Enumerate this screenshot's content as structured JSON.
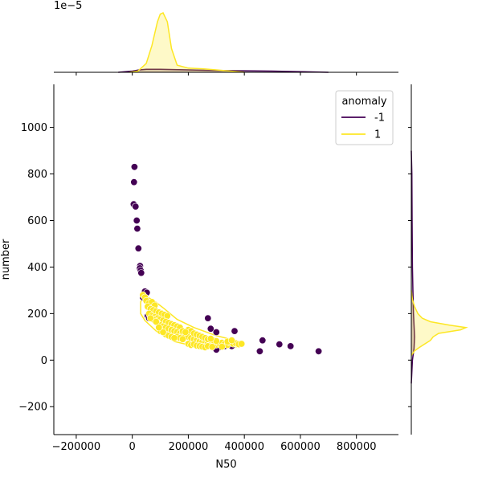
{
  "chart_data": {
    "type": "scatter",
    "xlabel": "N50",
    "ylabel": "number",
    "marginal_x_offset_label": "1e−5",
    "xlim": [
      -280000,
      950000
    ],
    "ylim": [
      -320,
      1185
    ],
    "xticks": [
      -200000,
      0,
      200000,
      400000,
      600000,
      800000
    ],
    "xtick_labels": [
      "−200000",
      "0",
      "200000",
      "400000",
      "600000",
      "800000"
    ],
    "yticks": [
      -200,
      0,
      200,
      400,
      600,
      800,
      1000
    ],
    "ytick_labels": [
      "−200",
      "0",
      "200",
      "400",
      "600",
      "800",
      "1000"
    ],
    "legend": {
      "title": "anomaly",
      "placement": "top-right",
      "entries": [
        {
          "label": "-1",
          "color": "#440154"
        },
        {
          "label": "1",
          "color": "#fde725"
        }
      ]
    },
    "series": [
      {
        "name": "-1",
        "color": "#440154",
        "points": [
          [
            8000,
            830
          ],
          [
            6000,
            765
          ],
          [
            5000,
            670
          ],
          [
            12000,
            660
          ],
          [
            16000,
            600
          ],
          [
            18000,
            565
          ],
          [
            22000,
            480
          ],
          [
            28000,
            405
          ],
          [
            27000,
            395
          ],
          [
            30000,
            385
          ],
          [
            32000,
            375
          ],
          [
            45000,
            295
          ],
          [
            52000,
            290
          ],
          [
            38000,
            270
          ],
          [
            55000,
            190
          ],
          [
            60000,
            180
          ],
          [
            70000,
            200
          ],
          [
            90000,
            160
          ],
          [
            110000,
            140
          ],
          [
            150000,
            120
          ],
          [
            190000,
            100
          ],
          [
            220000,
            110
          ],
          [
            240000,
            90
          ],
          [
            270000,
            180
          ],
          [
            280000,
            135
          ],
          [
            300000,
            120
          ],
          [
            310000,
            55
          ],
          [
            330000,
            60
          ],
          [
            345000,
            75
          ],
          [
            355000,
            60
          ],
          [
            365000,
            125
          ],
          [
            300000,
            45
          ],
          [
            465000,
            85
          ],
          [
            455000,
            38
          ],
          [
            525000,
            68
          ],
          [
            565000,
            60
          ],
          [
            665000,
            38
          ]
        ]
      },
      {
        "name": "1",
        "color": "#fde725",
        "points": [
          [
            38000,
            280
          ],
          [
            45000,
            270
          ],
          [
            50000,
            255
          ],
          [
            60000,
            245
          ],
          [
            70000,
            250
          ],
          [
            80000,
            235
          ],
          [
            55000,
            230
          ],
          [
            65000,
            220
          ],
          [
            75000,
            215
          ],
          [
            85000,
            210
          ],
          [
            95000,
            205
          ],
          [
            105000,
            200
          ],
          [
            115000,
            195
          ],
          [
            125000,
            190
          ],
          [
            60000,
            200
          ],
          [
            70000,
            190
          ],
          [
            80000,
            185
          ],
          [
            90000,
            180
          ],
          [
            100000,
            175
          ],
          [
            110000,
            170
          ],
          [
            120000,
            165
          ],
          [
            130000,
            160
          ],
          [
            140000,
            155
          ],
          [
            150000,
            150
          ],
          [
            160000,
            145
          ],
          [
            170000,
            140
          ],
          [
            90000,
            160
          ],
          [
            100000,
            150
          ],
          [
            110000,
            145
          ],
          [
            120000,
            140
          ],
          [
            130000,
            135
          ],
          [
            140000,
            130
          ],
          [
            150000,
            125
          ],
          [
            160000,
            120
          ],
          [
            170000,
            115
          ],
          [
            180000,
            110
          ],
          [
            190000,
            105
          ],
          [
            200000,
            100
          ],
          [
            210000,
            95
          ],
          [
            220000,
            90
          ],
          [
            230000,
            85
          ],
          [
            240000,
            80
          ],
          [
            250000,
            78
          ],
          [
            260000,
            75
          ],
          [
            270000,
            72
          ],
          [
            280000,
            70
          ],
          [
            290000,
            68
          ],
          [
            300000,
            66
          ],
          [
            310000,
            72
          ],
          [
            320000,
            75
          ],
          [
            330000,
            70
          ],
          [
            340000,
            65
          ],
          [
            350000,
            75
          ],
          [
            360000,
            70
          ],
          [
            370000,
            72
          ],
          [
            380000,
            68
          ],
          [
            390000,
            70
          ],
          [
            200000,
            130
          ],
          [
            210000,
            125
          ],
          [
            220000,
            115
          ],
          [
            180000,
            125
          ],
          [
            190000,
            120
          ],
          [
            160000,
            100
          ],
          [
            170000,
            95
          ],
          [
            180000,
            90
          ],
          [
            230000,
            110
          ],
          [
            240000,
            105
          ],
          [
            250000,
            100
          ],
          [
            260000,
            95
          ],
          [
            270000,
            90
          ],
          [
            200000,
            70
          ],
          [
            210000,
            65
          ],
          [
            220000,
            68
          ],
          [
            230000,
            62
          ],
          [
            240000,
            60
          ],
          [
            250000,
            58
          ],
          [
            260000,
            55
          ],
          [
            120000,
            110
          ],
          [
            130000,
            105
          ],
          [
            140000,
            100
          ],
          [
            150000,
            95
          ],
          [
            100000,
            125
          ],
          [
            110000,
            120
          ],
          [
            75000,
            175
          ],
          [
            85000,
            165
          ],
          [
            95000,
            140
          ],
          [
            65000,
            180
          ],
          [
            290000,
            85
          ],
          [
            300000,
            82
          ],
          [
            280000,
            92
          ],
          [
            270000,
            60
          ],
          [
            285000,
            57
          ],
          [
            320000,
            58
          ],
          [
            340000,
            80
          ],
          [
            355000,
            85
          ]
        ]
      }
    ],
    "marginal_top": {
      "series": [
        {
          "name": "-1",
          "color": "#440154",
          "x": [
            -50000,
            0,
            25000,
            50000,
            100000,
            200000,
            300000,
            500000,
            700000
          ],
          "density": [
            0,
            0.02,
            0.04,
            0.05,
            0.05,
            0.04,
            0.03,
            0.02,
            0
          ]
        },
        {
          "name": "1",
          "color": "#fde725",
          "x": [
            -10000,
            20000,
            50000,
            70000,
            90000,
            100000,
            110000,
            125000,
            140000,
            160000,
            200000,
            250000,
            300000,
            350000,
            400000
          ],
          "density": [
            0,
            0.02,
            0.15,
            0.45,
            0.85,
            0.98,
            1.0,
            0.85,
            0.4,
            0.12,
            0.07,
            0.06,
            0.04,
            0.02,
            0
          ]
        }
      ]
    },
    "marginal_right": {
      "series": [
        {
          "name": "-1",
          "color": "#440154",
          "y": [
            -100,
            0,
            50,
            100,
            150,
            200,
            300,
            400,
            600,
            800,
            900
          ],
          "density": [
            0,
            0.02,
            0.05,
            0.06,
            0.05,
            0.04,
            0.03,
            0.02,
            0.015,
            0.01,
            0
          ]
        },
        {
          "name": "1",
          "color": "#fde725",
          "y": [
            20,
            40,
            55,
            70,
            85,
            100,
            115,
            130,
            140,
            150,
            165,
            180,
            200,
            230,
            260,
            300
          ],
          "density": [
            0,
            0.06,
            0.15,
            0.25,
            0.35,
            0.4,
            0.5,
            0.9,
            1.0,
            0.7,
            0.35,
            0.2,
            0.12,
            0.06,
            0.02,
            0
          ]
        }
      ]
    }
  }
}
